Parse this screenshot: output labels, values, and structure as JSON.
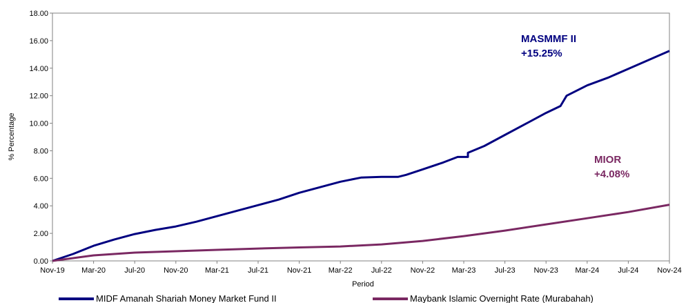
{
  "chart_data": {
    "type": "line",
    "xlabel": "Period",
    "ylabel": "% Percentage",
    "ylim": [
      0,
      18
    ],
    "yticks": [
      "0.00",
      "2.00",
      "4.00",
      "6.00",
      "8.00",
      "10.00",
      "12.00",
      "14.00",
      "16.00",
      "18.00"
    ],
    "categories": [
      "Nov-19",
      "Mar-20",
      "Jul-20",
      "Nov-20",
      "Mar-21",
      "Jul-21",
      "Nov-21",
      "Mar-22",
      "Jul-22",
      "Nov-22",
      "Mar-23",
      "Jul-23",
      "Nov-23",
      "Mar-24",
      "Jul-24",
      "Nov-24"
    ],
    "grid": false,
    "legend_position": "bottom",
    "series": [
      {
        "name": "MIDF Amanah Shariah Money Market Fund II",
        "color": "#000080",
        "x": [
          0,
          0.5,
          1,
          1.5,
          2,
          2.5,
          3,
          3.5,
          4,
          4.5,
          5,
          5.5,
          6,
          6.5,
          7,
          7.5,
          8,
          8.4,
          8.6,
          8.6,
          9,
          9.5,
          9.85,
          10.1,
          10.1,
          10.5,
          11,
          11.5,
          12,
          12.35,
          12.5,
          13,
          13.5,
          14,
          14.5,
          15
        ],
        "values": [
          0,
          0.5,
          1.1,
          1.55,
          1.95,
          2.25,
          2.5,
          2.85,
          3.25,
          3.65,
          4.05,
          4.45,
          4.95,
          5.35,
          5.75,
          6.05,
          6.1,
          6.1,
          6.25,
          6.25,
          6.65,
          7.15,
          7.55,
          7.55,
          7.85,
          8.35,
          9.15,
          9.95,
          10.75,
          11.25,
          12.0,
          12.75,
          13.3,
          13.95,
          14.6,
          15.25
        ]
      },
      {
        "name": "Maybank Islamic Overnight Rate (Murabahah)",
        "color": "#7a2862",
        "x": [
          0,
          1,
          2,
          3,
          4,
          5,
          6,
          7,
          8,
          9,
          10,
          11,
          12,
          13,
          14,
          15
        ],
        "values": [
          0,
          0.4,
          0.6,
          0.7,
          0.8,
          0.9,
          0.98,
          1.05,
          1.2,
          1.45,
          1.8,
          2.2,
          2.65,
          3.1,
          3.55,
          4.08
        ]
      }
    ],
    "annotations": [
      {
        "series": 0,
        "label": "MASMMF II",
        "value_text": "+15.25%",
        "color": "#000080"
      },
      {
        "series": 1,
        "label": "MIOR",
        "value_text": "+4.08%",
        "color": "#7a2862"
      }
    ]
  }
}
